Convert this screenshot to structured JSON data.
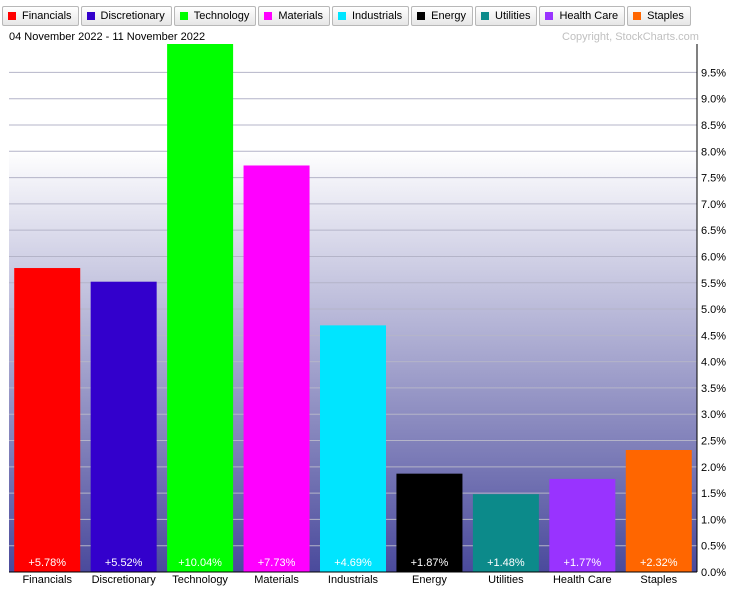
{
  "header": {
    "date_range": "04 November 2022 - 11 November 2022",
    "copyright": "Copyright, StockCharts.com"
  },
  "legend": [
    {
      "label": "Financials",
      "color": "#ff0000"
    },
    {
      "label": "Discretionary",
      "color": "#3300cc"
    },
    {
      "label": "Technology",
      "color": "#00ff00"
    },
    {
      "label": "Materials",
      "color": "#ff00ff"
    },
    {
      "label": "Industrials",
      "color": "#00e5ff"
    },
    {
      "label": "Energy",
      "color": "#000000"
    },
    {
      "label": "Utilities",
      "color": "#0c8a8a"
    },
    {
      "label": "Health Care",
      "color": "#9933ff"
    },
    {
      "label": "Staples",
      "color": "#ff6600"
    }
  ],
  "chart_data": {
    "type": "bar",
    "categories": [
      "Financials",
      "Discretionary",
      "Technology",
      "Materials",
      "Industrials",
      "Energy",
      "Utilities",
      "Health Care",
      "Staples"
    ],
    "values": [
      5.78,
      5.52,
      10.04,
      7.73,
      4.69,
      1.87,
      1.48,
      1.77,
      2.32
    ],
    "data_labels": [
      "+5.78%",
      "+5.52%",
      "+10.04%",
      "+7.73%",
      "+4.69%",
      "+1.87%",
      "+1.48%",
      "+1.77%",
      "+2.32%"
    ],
    "colors": [
      "#ff0000",
      "#3300cc",
      "#00ff00",
      "#ff00ff",
      "#00e5ff",
      "#000000",
      "#0c8a8a",
      "#9933ff",
      "#ff6600"
    ],
    "ylim": [
      0,
      10.04
    ],
    "y_ticks": [
      0,
      0.5,
      1,
      1.5,
      2,
      2.5,
      3,
      3.5,
      4,
      4.5,
      5,
      5.5,
      6,
      6.5,
      7,
      7.5,
      8,
      8.5,
      9,
      9.5
    ],
    "y_tick_labels": [
      "0.0%",
      "0.5%",
      "1.0%",
      "1.5%",
      "2.0%",
      "2.5%",
      "3.0%",
      "3.5%",
      "4.0%",
      "4.5%",
      "5.0%",
      "5.5%",
      "6.0%",
      "6.5%",
      "7.0%",
      "7.5%",
      "8.0%",
      "8.5%",
      "9.0%",
      "9.5%"
    ],
    "y_axis_side": "right",
    "grid": true,
    "legend_position": "top"
  }
}
